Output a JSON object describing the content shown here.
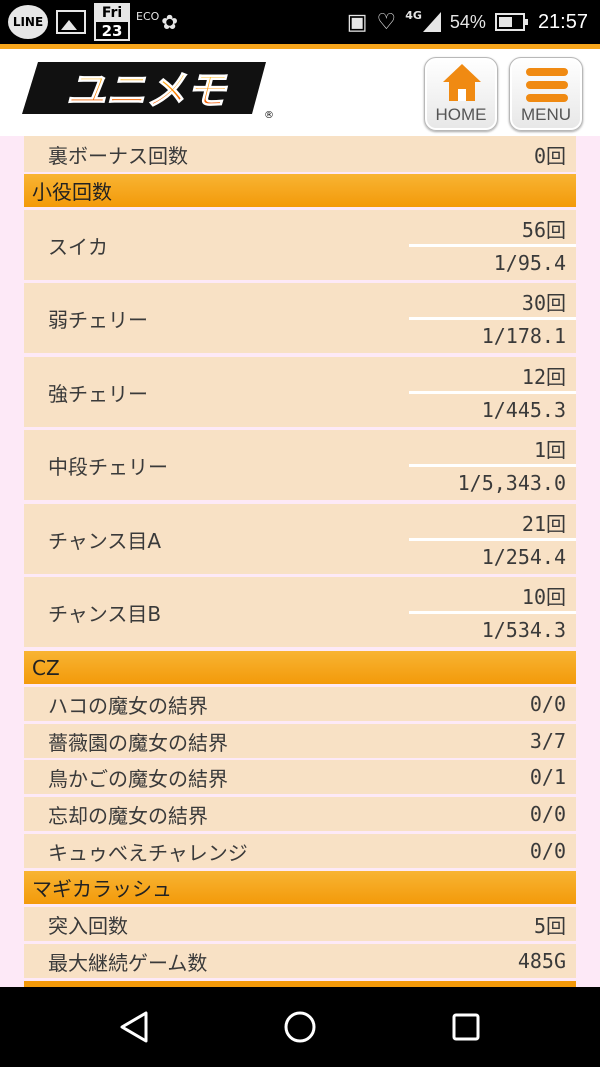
{
  "status_bar": {
    "line_label": "LINE",
    "cal_dow": "Fri",
    "cal_day": "23",
    "eco_label": "ECO",
    "network_label": "4G",
    "battery_pct": "54%",
    "time": "21:57"
  },
  "header": {
    "logo_text": "ユニメモ",
    "home_label": "HOME",
    "menu_label": "MENU"
  },
  "rows": {
    "ura_bonus": {
      "label": "裏ボーナス回数",
      "value": "0回"
    }
  },
  "koyaku": {
    "title": "小役回数",
    "items": [
      {
        "label": "スイカ",
        "count": "56回",
        "prob": "1/95.4"
      },
      {
        "label": "弱チェリー",
        "count": "30回",
        "prob": "1/178.1"
      },
      {
        "label": "強チェリー",
        "count": "12回",
        "prob": "1/445.3"
      },
      {
        "label": "中段チェリー",
        "count": "1回",
        "prob": "1/5,343.0"
      },
      {
        "label": "チャンス目A",
        "count": "21回",
        "prob": "1/254.4"
      },
      {
        "label": "チャンス目B",
        "count": "10回",
        "prob": "1/534.3"
      }
    ]
  },
  "cz": {
    "title": "CZ",
    "items": [
      {
        "label": "ハコの魔女の結界",
        "value": "0/0"
      },
      {
        "label": "薔薇園の魔女の結界",
        "value": "3/7"
      },
      {
        "label": "鳥かごの魔女の結界",
        "value": "0/1"
      },
      {
        "label": "忘却の魔女の結界",
        "value": "0/0"
      },
      {
        "label": "キュゥべえチャレンジ",
        "value": "0/0"
      }
    ]
  },
  "magica_rush": {
    "title": "マギカラッシュ",
    "items": [
      {
        "label": "突入回数",
        "value": "5回"
      },
      {
        "label": "最大継続ゲーム数",
        "value": "485G"
      }
    ]
  },
  "colors": {
    "section_orange": "#f39a0a",
    "row_bg": "#f8e1c5",
    "page_bg": "#fde9f7",
    "accent": "#f08a12"
  }
}
